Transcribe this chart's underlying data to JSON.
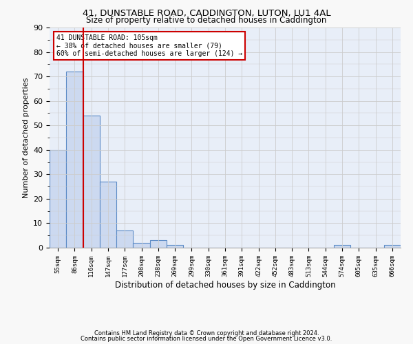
{
  "title1": "41, DUNSTABLE ROAD, CADDINGTON, LUTON, LU1 4AL",
  "title2": "Size of property relative to detached houses in Caddington",
  "xlabel": "Distribution of detached houses by size in Caddington",
  "ylabel": "Number of detached properties",
  "bar_values": [
    40,
    72,
    54,
    27,
    7,
    2,
    3,
    1,
    0,
    0,
    0,
    0,
    0,
    0,
    0,
    0,
    0,
    1,
    0,
    0,
    1
  ],
  "bar_labels": [
    "55sqm",
    "86sqm",
    "116sqm",
    "147sqm",
    "177sqm",
    "208sqm",
    "238sqm",
    "269sqm",
    "299sqm",
    "330sqm",
    "361sqm",
    "391sqm",
    "422sqm",
    "452sqm",
    "483sqm",
    "513sqm",
    "544sqm",
    "574sqm",
    "605sqm",
    "635sqm",
    "666sqm"
  ],
  "bar_color": "#ccd9f0",
  "bar_edge_color": "#5a8ac6",
  "vline_x_idx": 1,
  "vline_color": "#cc0000",
  "annotation_line1": "41 DUNSTABLE ROAD: 105sqm",
  "annotation_line2": "← 38% of detached houses are smaller (79)",
  "annotation_line3": "60% of semi-detached houses are larger (124) →",
  "annotation_box_color": "#cc0000",
  "annotation_box_fill": "#ffffff",
  "ylim": [
    0,
    90
  ],
  "yticks": [
    0,
    10,
    20,
    30,
    40,
    50,
    60,
    70,
    80,
    90
  ],
  "grid_color": "#cccccc",
  "bg_color": "#e8eef8",
  "fig_bg_color": "#f8f8f8",
  "footer1": "Contains HM Land Registry data © Crown copyright and database right 2024.",
  "footer2": "Contains public sector information licensed under the Open Government Licence v3.0."
}
